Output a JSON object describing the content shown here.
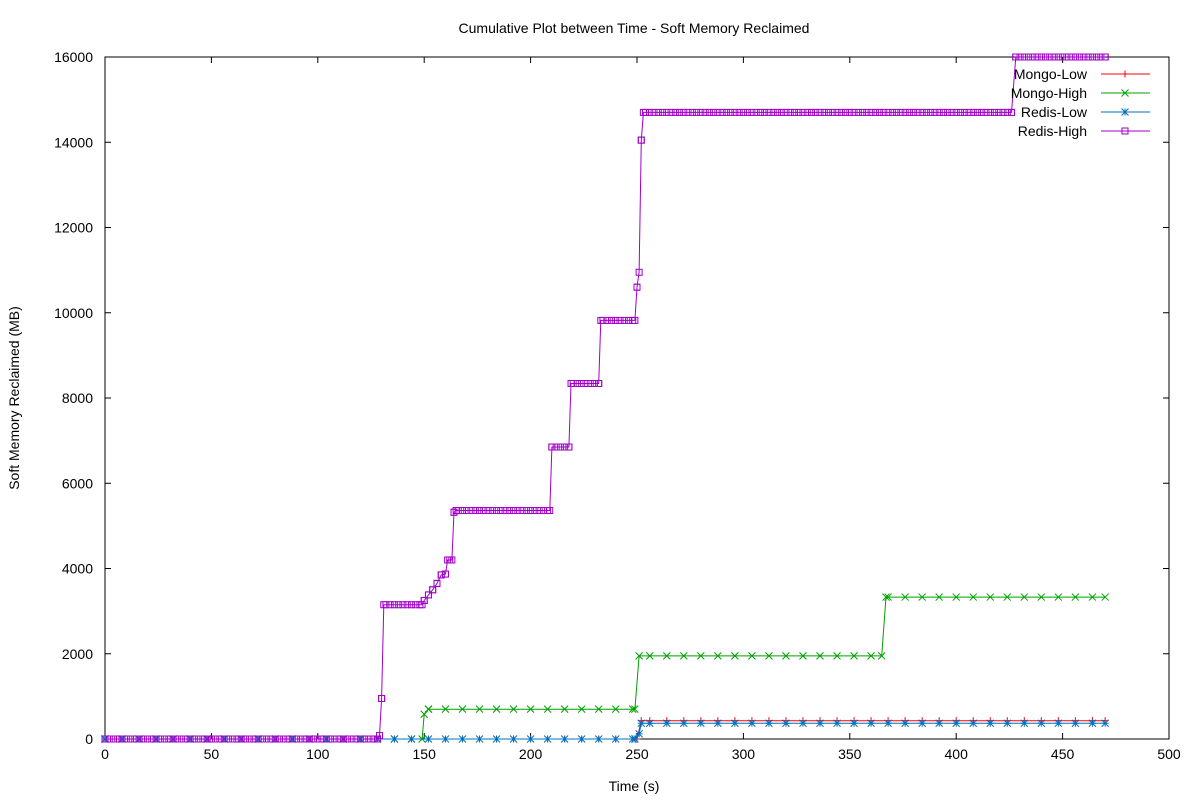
{
  "chart_data": {
    "type": "line",
    "title": "Cumulative Plot between Time - Soft Memory Reclaimed",
    "xlabel": "Time (s)",
    "ylabel": "Soft Memory Reclaimed (MB)",
    "xlim": [
      0,
      500
    ],
    "ylim": [
      0,
      16000
    ],
    "x_ticks": [
      0,
      50,
      100,
      150,
      200,
      250,
      300,
      350,
      400,
      450,
      500
    ],
    "y_ticks": [
      0,
      2000,
      4000,
      6000,
      8000,
      10000,
      12000,
      14000,
      16000
    ],
    "legend_position": "top-right",
    "grid": false,
    "series": [
      {
        "name": "Mongo-Low",
        "color": "#ff0000",
        "marker": "plus",
        "points": [
          [
            0,
            0
          ],
          [
            250,
            0
          ],
          [
            252,
            430
          ],
          [
            470,
            430
          ]
        ]
      },
      {
        "name": "Mongo-High",
        "color": "#00a000",
        "marker": "cross",
        "points": [
          [
            0,
            0
          ],
          [
            149,
            0
          ],
          [
            150,
            580
          ],
          [
            152,
            700
          ],
          [
            249,
            700
          ],
          [
            251,
            1950
          ],
          [
            365,
            1950
          ],
          [
            367,
            3330
          ],
          [
            470,
            3330
          ]
        ]
      },
      {
        "name": "Redis-Low",
        "color": "#0070c0",
        "marker": "star",
        "points": [
          [
            0,
            0
          ],
          [
            249,
            0
          ],
          [
            251,
            120
          ],
          [
            252,
            370
          ],
          [
            470,
            370
          ]
        ]
      },
      {
        "name": "Redis-High",
        "color": "#a000c8",
        "marker": "square",
        "points": [
          [
            0,
            0
          ],
          [
            128,
            0
          ],
          [
            129,
            80
          ],
          [
            130,
            950
          ],
          [
            131,
            3150
          ],
          [
            149,
            3150
          ],
          [
            150,
            3250
          ],
          [
            152,
            3380
          ],
          [
            154,
            3500
          ],
          [
            156,
            3650
          ],
          [
            158,
            3850
          ],
          [
            160,
            3870
          ],
          [
            161,
            4200
          ],
          [
            163,
            4200
          ],
          [
            164,
            5320
          ],
          [
            165,
            5360
          ],
          [
            209,
            5360
          ],
          [
            210,
            6850
          ],
          [
            218,
            6850
          ],
          [
            219,
            8340
          ],
          [
            232,
            8340
          ],
          [
            233,
            9820
          ],
          [
            249,
            9820
          ],
          [
            250,
            10600
          ],
          [
            251,
            10950
          ],
          [
            252,
            14050
          ],
          [
            253,
            14700
          ],
          [
            426,
            14700
          ],
          [
            428,
            16000
          ],
          [
            470,
            16000
          ]
        ]
      }
    ]
  }
}
